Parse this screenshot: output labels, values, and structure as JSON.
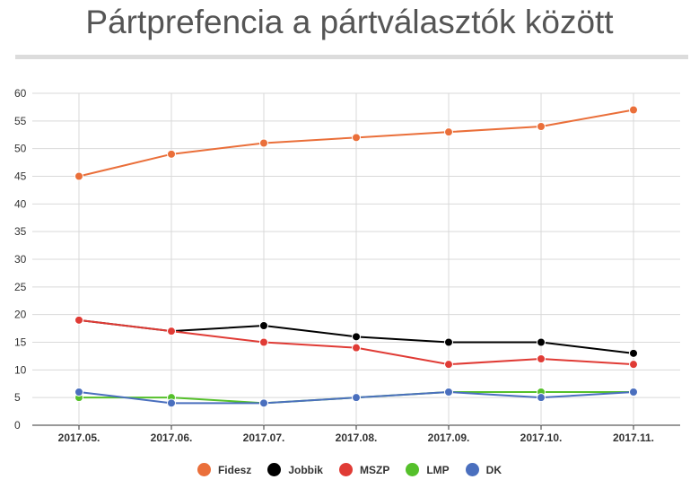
{
  "title": "Pártprefencia a pártválasztók között",
  "chart_data": {
    "type": "line",
    "title": "Pártprefencia a pártválasztók között",
    "xlabel": "",
    "ylabel": "",
    "categories": [
      "2017.05.",
      "2017.06.",
      "2017.07.",
      "2017.08.",
      "2017.09.",
      "2017.10.",
      "2017.11."
    ],
    "ylim": [
      0,
      60
    ],
    "yticks": [
      0,
      5,
      10,
      15,
      20,
      25,
      30,
      35,
      40,
      45,
      50,
      55,
      60
    ],
    "grid": true,
    "legend_position": "bottom",
    "series": [
      {
        "name": "Fidesz",
        "color": "#ea6f3a",
        "values": [
          45,
          49,
          51,
          52,
          53,
          54,
          57
        ]
      },
      {
        "name": "Jobbik",
        "color": "#000000",
        "values": [
          19,
          17,
          18,
          16,
          15,
          15,
          13
        ]
      },
      {
        "name": "MSZP",
        "color": "#e03b35",
        "values": [
          19,
          17,
          15,
          14,
          11,
          12,
          11
        ]
      },
      {
        "name": "LMP",
        "color": "#55c02b",
        "values": [
          5,
          5,
          4,
          5,
          6,
          6,
          6
        ]
      },
      {
        "name": "DK",
        "color": "#4a6fbe",
        "values": [
          6,
          4,
          4,
          5,
          6,
          5,
          6
        ]
      }
    ]
  }
}
